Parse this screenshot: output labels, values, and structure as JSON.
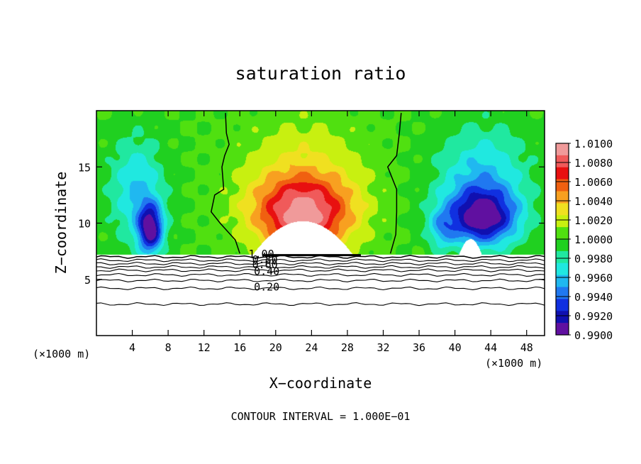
{
  "chart_data": {
    "type": "heatmap",
    "title": "saturation ratio",
    "xlabel": "X−coordinate",
    "ylabel": "Z−coordinate",
    "x_unit_left": "(×1000 m)",
    "x_unit_right": "(×1000 m)",
    "footer": "CONTOUR INTERVAL = 1.000E−01",
    "xlim": [
      0,
      50
    ],
    "ylim": [
      0,
      20
    ],
    "x_ticks": [
      4,
      8,
      12,
      16,
      20,
      24,
      28,
      32,
      36,
      40,
      44,
      48
    ],
    "y_ticks": [
      5,
      10,
      15
    ],
    "colorbar": {
      "range": [
        0.99,
        1.01
      ],
      "labels": [
        "1.0100",
        "1.0080",
        "1.0060",
        "1.0040",
        "1.0020",
        "1.0000",
        "0.9980",
        "0.9960",
        "0.9940",
        "0.9920",
        "0.9900"
      ],
      "colors": [
        "#f09a9a",
        "#f05a5a",
        "#e81010",
        "#f06010",
        "#f8a020",
        "#f0e020",
        "#c8f010",
        "#50e010",
        "#20d020",
        "#20e8a0",
        "#20e8e0",
        "#20b8f0",
        "#2078f0",
        "#1030e0",
        "#1010b0",
        "#6010a0"
      ]
    },
    "contour_labels": [
      "1.00",
      "0.80",
      "0.60",
      "0.40",
      "0.20"
    ],
    "field": {
      "background": 1.0,
      "features": [
        {
          "x": 23,
          "z": 10.8,
          "sx": 5.5,
          "sz": 3.2,
          "amp": 0.0085
        },
        {
          "x": 23,
          "z": 14.5,
          "sx": 7,
          "sz": 5,
          "amp": 0.0025
        },
        {
          "x": 6,
          "z": 9.5,
          "sx": 1.4,
          "sz": 2.2,
          "amp": -0.009
        },
        {
          "x": 4.5,
          "z": 13,
          "sx": 3,
          "sz": 4.5,
          "amp": -0.004
        },
        {
          "x": 43,
          "z": 10.5,
          "sx": 4,
          "sz": 2.5,
          "amp": -0.0085
        },
        {
          "x": 43,
          "z": 14,
          "sx": 5,
          "sz": 4.5,
          "amp": -0.004
        },
        {
          "x": 38.5,
          "z": 9.5,
          "sx": 1.5,
          "sz": 1.8,
          "amp": -0.003
        }
      ],
      "cloud_free_top": 7.2,
      "hills": [
        {
          "x": 23,
          "z": 10.2,
          "hw": 3.5
        },
        {
          "x": 41.7,
          "z": 8.6,
          "hw": 0.8
        }
      ],
      "lower_contours": [
        7.0,
        6.7,
        6.4,
        6.1,
        5.8,
        5.4,
        4.9,
        4.2,
        2.8
      ],
      "sat_line_left": [
        [
          14.4,
          19.8
        ],
        [
          14.5,
          18
        ],
        [
          14.8,
          17
        ],
        [
          14.3,
          16
        ],
        [
          14,
          15
        ],
        [
          14.2,
          13
        ],
        [
          13.2,
          12.5
        ],
        [
          12.8,
          11
        ],
        [
          13.8,
          10
        ],
        [
          15.5,
          8.5
        ],
        [
          16,
          7.3
        ]
      ],
      "sat_line_right": [
        [
          34,
          19.8
        ],
        [
          33.8,
          18
        ],
        [
          33.5,
          16
        ],
        [
          32.5,
          15
        ],
        [
          33.5,
          13
        ],
        [
          33.5,
          11
        ],
        [
          33.4,
          9
        ],
        [
          32.8,
          7.3
        ]
      ]
    }
  }
}
